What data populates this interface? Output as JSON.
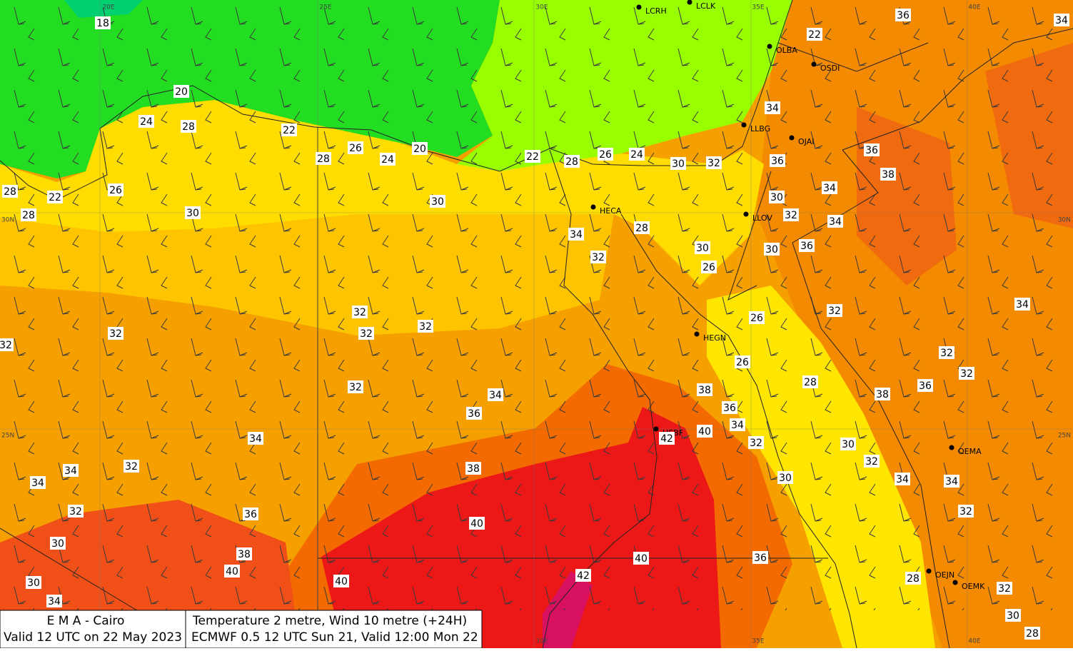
{
  "map": {
    "grid_labels": {
      "top": [
        "20E",
        "25E",
        "30E",
        "35E",
        "40E"
      ],
      "left": [
        "30N",
        "25N"
      ],
      "right": [
        "30N",
        "25N"
      ],
      "bottom": [
        "30E",
        "35E",
        "40E"
      ]
    },
    "stations": [
      "LCRH",
      "LCLK",
      "OLBA",
      "OSDI",
      "LLBG",
      "OJAI",
      "HECA",
      "LLOV",
      "HEGN",
      "HEBF",
      "OEMA",
      "OEJN",
      "OEMK"
    ],
    "temperature_labels": [
      18,
      20,
      24,
      28,
      22,
      28,
      26,
      24,
      20,
      22,
      28,
      26,
      24,
      30,
      32,
      28,
      22,
      26,
      28,
      30,
      30,
      22,
      36,
      34,
      34,
      36,
      36,
      38,
      30,
      34,
      32,
      34,
      30,
      36,
      34,
      28,
      32,
      30,
      26,
      26,
      26,
      32,
      34,
      32,
      32,
      28,
      38,
      36,
      32,
      32,
      32,
      32,
      32,
      32,
      34,
      36,
      38,
      36,
      34,
      40,
      42,
      32,
      30,
      32,
      34,
      34,
      30,
      32,
      34,
      34,
      34,
      32,
      32,
      38,
      36,
      40,
      30,
      38,
      40,
      40,
      36,
      42,
      40,
      30,
      34,
      28,
      32,
      30,
      28
    ],
    "info": {
      "left": [
        "E M A  -  Cairo",
        "Valid 12 UTC on 22 May 2023"
      ],
      "right": [
        "Temperature  2 metre, Wind  10 metre (+24H)",
        "ECMWF 0.5 12 UTC Sun 21, Valid 12:00 Mon 22"
      ]
    }
  }
}
